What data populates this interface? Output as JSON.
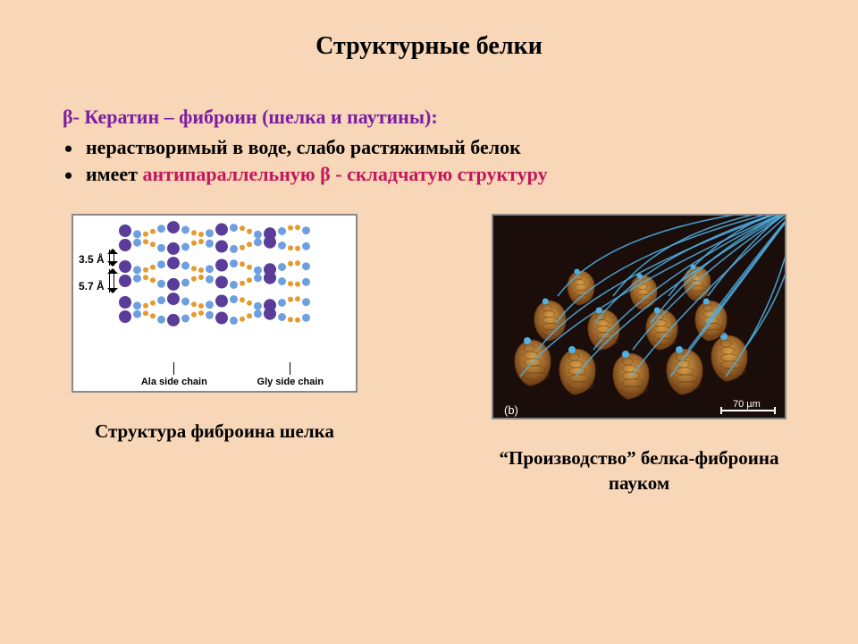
{
  "colors": {
    "slide_bg": "#f8d7b8",
    "title_color": "#000000",
    "subtitle_color": "#7b1fa2",
    "body_color": "#000000",
    "highlight_color": "#c2185b",
    "caption_color": "#000000",
    "bead_blue": "#6ea0e0",
    "bead_dark": "#5a3d99",
    "bead_amber": "#e59a2e",
    "spinneret_bg": "#1a0d0a",
    "spinneret_body": "#dca24a",
    "spinneret_dark": "#6b3a12",
    "silk": "#4fb3e8"
  },
  "title": "Структурные белки",
  "subtitle": "β- Кератин – фиброин (шелка и паутины):",
  "bullets": {
    "b1_prefix": "нерастворимый в воде,   слабо растяжимый белок",
    "b2_prefix": "имеет  ",
    "b2_highlight": "антипараллельную β - складчатую структуру"
  },
  "left_fig": {
    "dim1": "3.5 Å",
    "dim2": "5.7 Å",
    "label_ala": "Ala side chain",
    "label_gly": "Gly side chain",
    "caption": "Структура фиброина шелка"
  },
  "right_fig": {
    "caption_l1": "“Производство” белка-фиброина",
    "caption_l2": "пауком",
    "scale_label": "70 µm",
    "marker": "(b)"
  }
}
